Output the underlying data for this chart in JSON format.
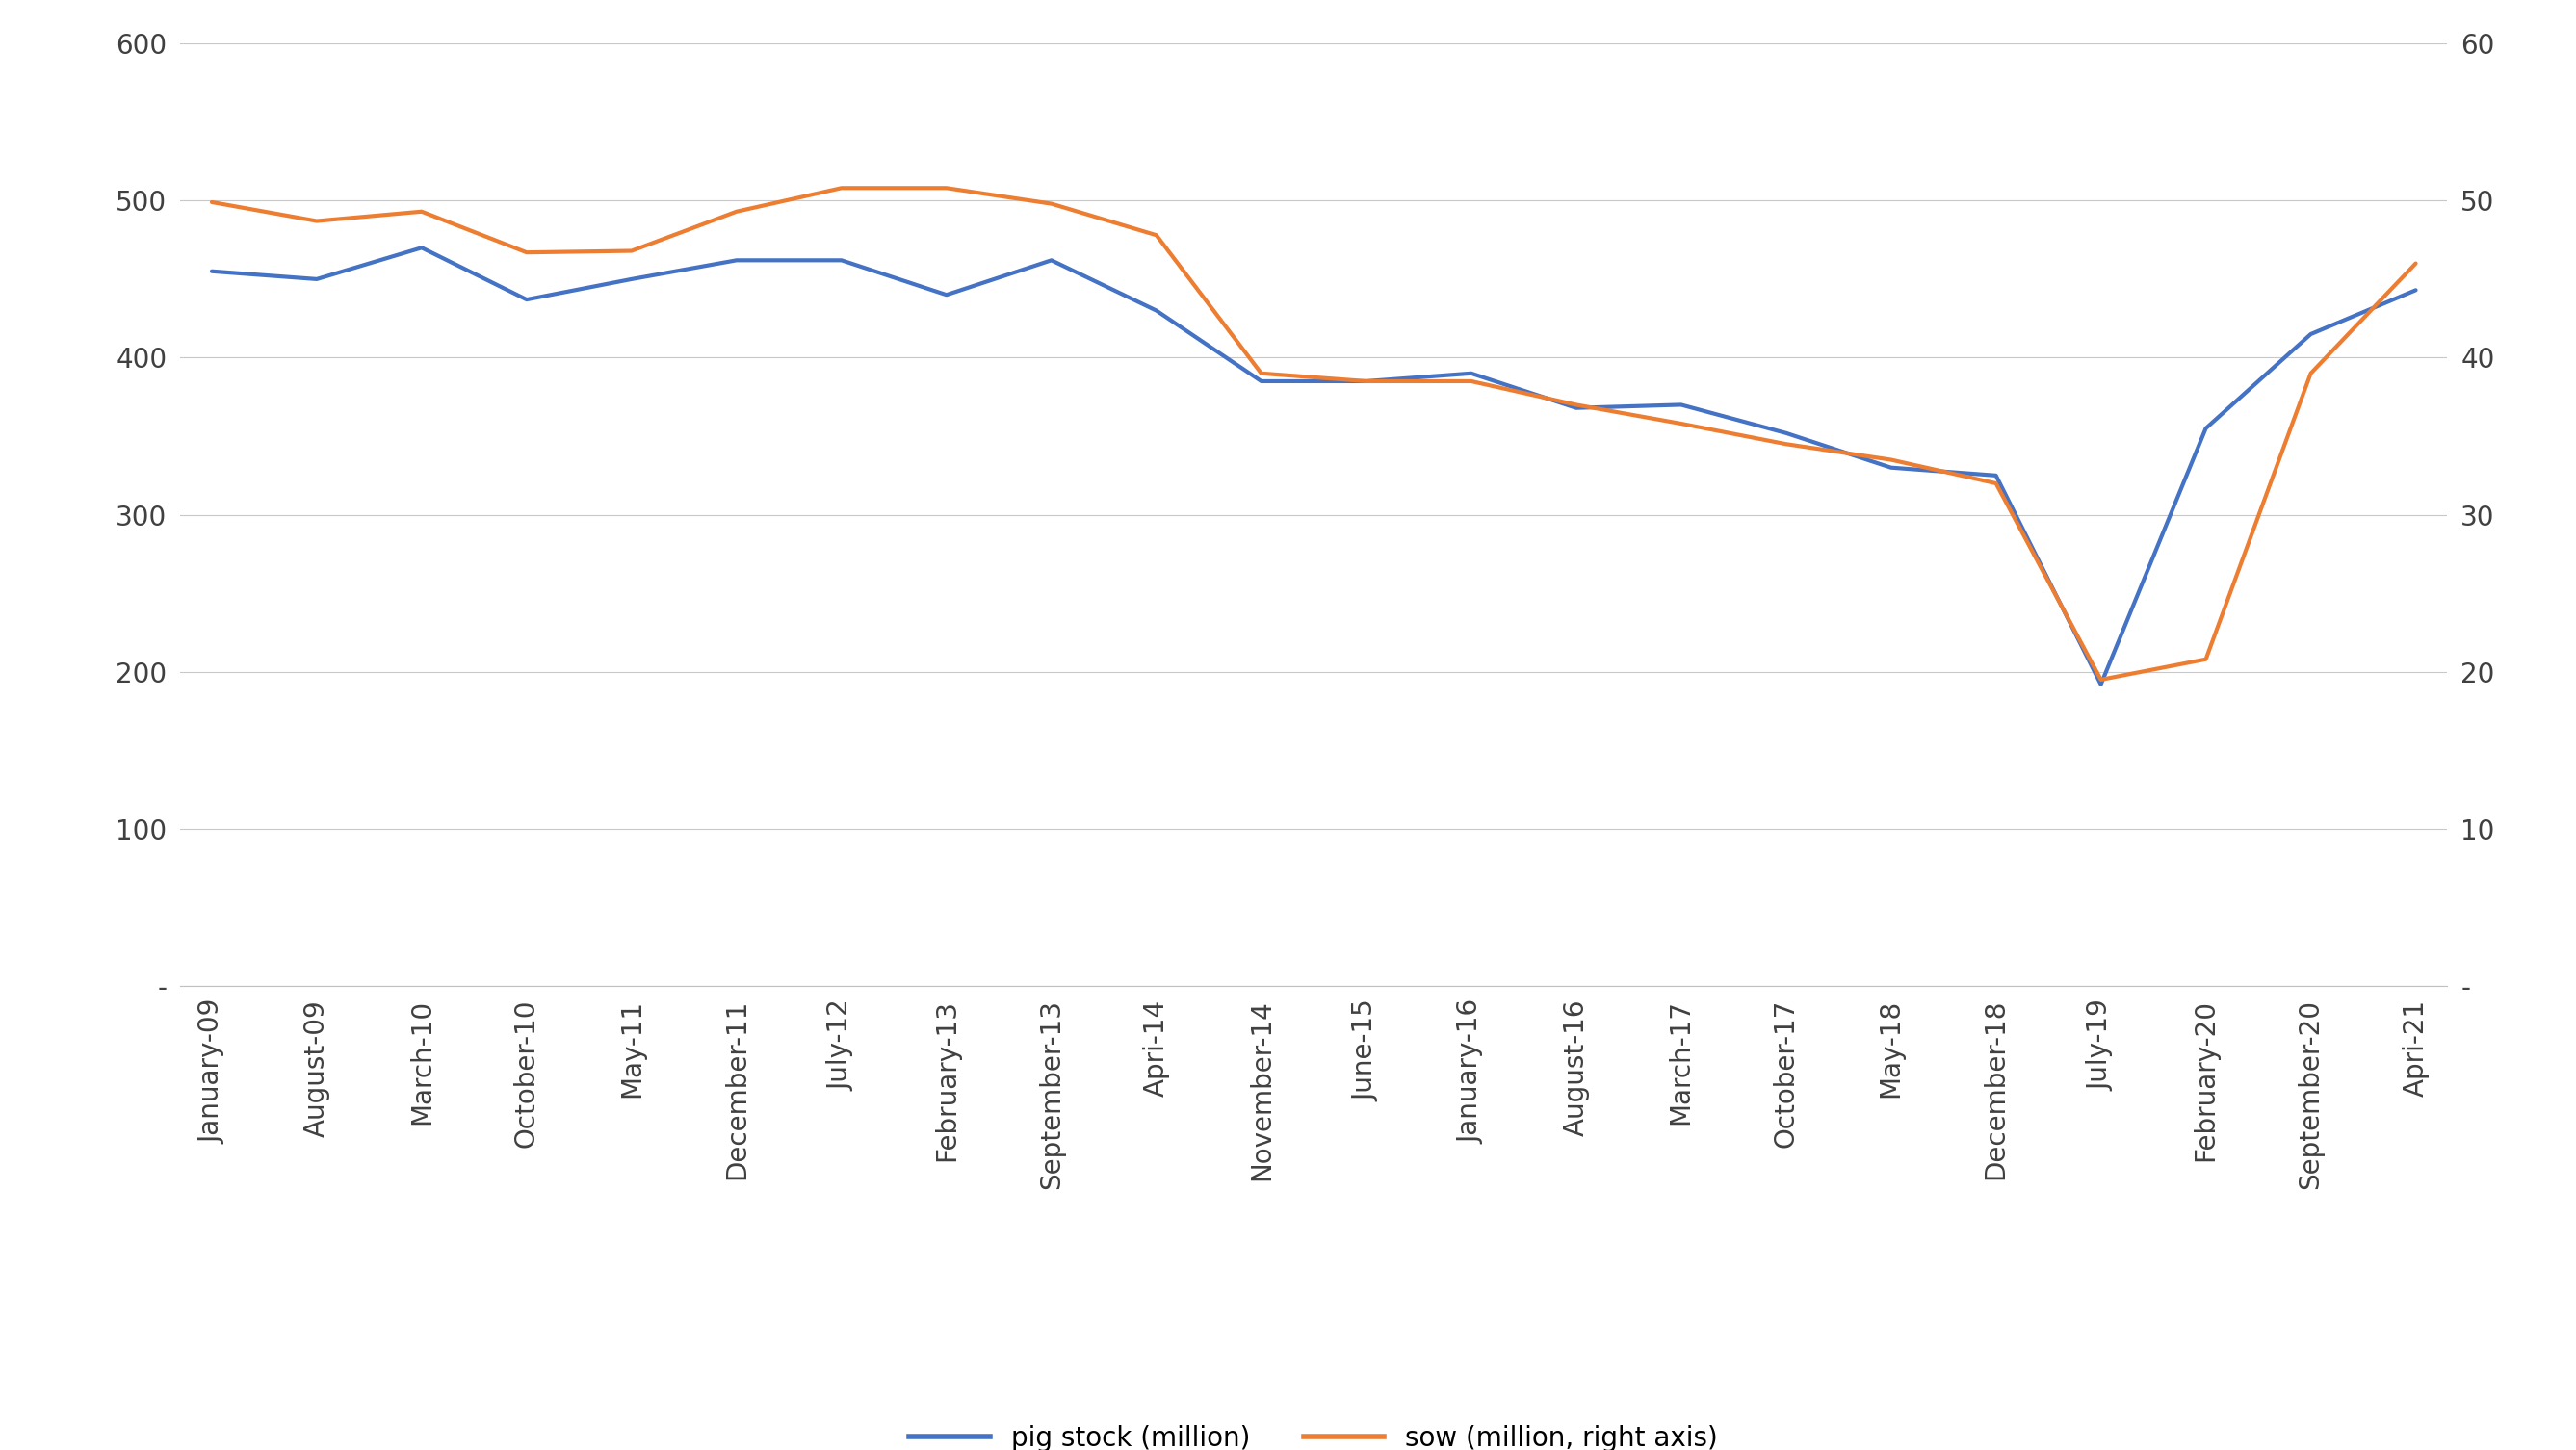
{
  "x_labels": [
    "January-09",
    "August-09",
    "March-10",
    "October-10",
    "May-11",
    "December-11",
    "July-12",
    "February-13",
    "September-13",
    "Apri-14",
    "November-14",
    "June-15",
    "January-16",
    "August-16",
    "March-17",
    "October-17",
    "May-18",
    "December-18",
    "July-19",
    "February-20",
    "September-20",
    "Apri-21"
  ],
  "pig_stock": [
    455,
    450,
    470,
    437,
    450,
    462,
    462,
    440,
    462,
    430,
    385,
    385,
    390,
    368,
    370,
    352,
    330,
    325,
    192,
    355,
    415,
    443
  ],
  "sow_right": [
    49.9,
    48.7,
    49.3,
    46.7,
    46.8,
    49.3,
    50.8,
    50.8,
    49.8,
    47.8,
    39.0,
    38.5,
    38.5,
    37.0,
    35.8,
    34.5,
    33.5,
    32.0,
    19.5,
    20.8,
    39.0,
    46.0
  ],
  "pig_color": "#4472C4",
  "sow_color": "#ED7D31",
  "pig_label": "pig stock (million)",
  "sow_label": "sow (million, right axis)",
  "ylim_left": [
    0,
    600
  ],
  "ylim_right": [
    0,
    60
  ],
  "yticks_left": [
    0,
    100,
    200,
    300,
    400,
    500,
    600
  ],
  "yticks_right": [
    0,
    10,
    20,
    30,
    40,
    50,
    60
  ],
  "ytick_labels_left": [
    "-",
    "100",
    "200",
    "300",
    "400",
    "500",
    "600"
  ],
  "ytick_labels_right": [
    "-",
    "10",
    "20",
    "30",
    "40",
    "50",
    "60"
  ],
  "background_color": "#ffffff",
  "grid_color": "#c8c8c8",
  "line_width": 3.0,
  "legend_fontsize": 20,
  "tick_fontsize": 20,
  "axis_label_color": "#404040"
}
